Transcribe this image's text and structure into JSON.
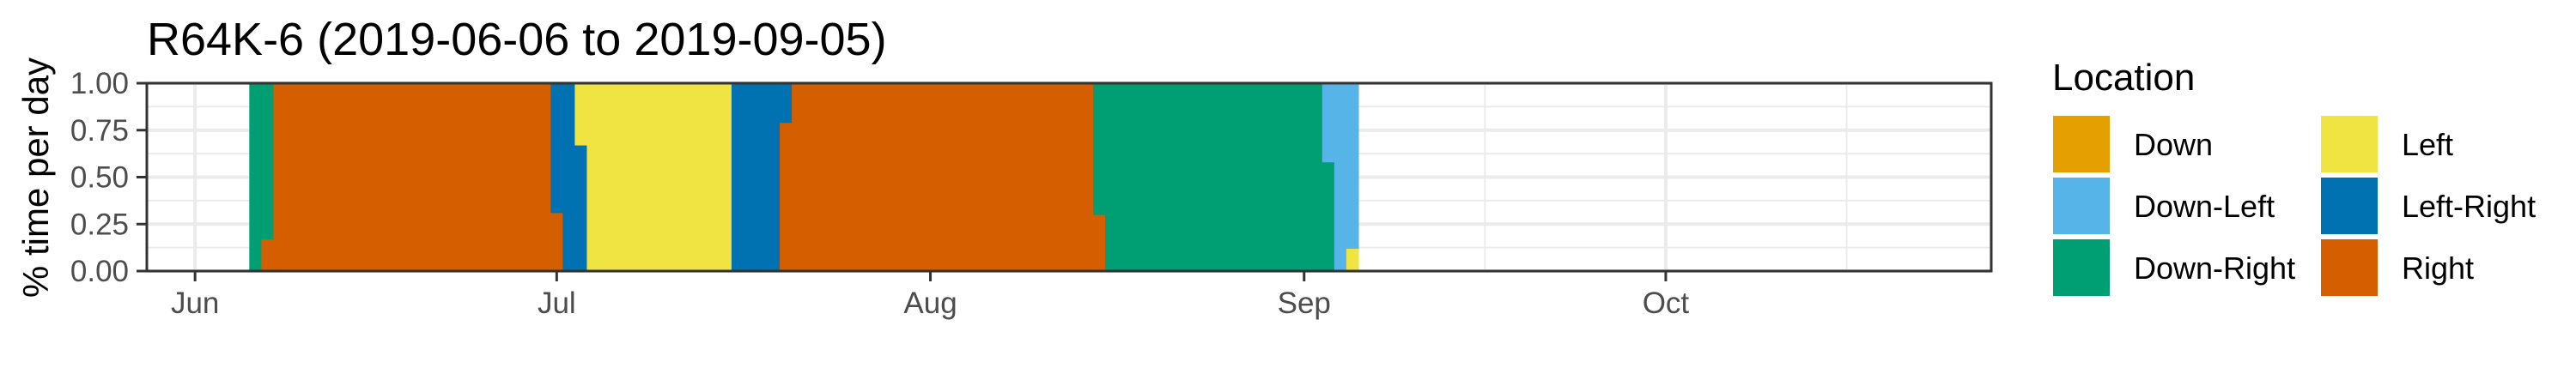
{
  "chart_data": {
    "type": "bar",
    "stacked": true,
    "title": "R64K-6 (2019-06-06 to 2019-09-05)",
    "xlabel": "",
    "ylabel": "% time per day",
    "xlim": [
      "2019-05-28",
      "2019-10-28"
    ],
    "ylim": [
      0,
      1
    ],
    "grid": true,
    "x_ticks": [
      {
        "date": "2019-06-01",
        "label": "Jun"
      },
      {
        "date": "2019-07-01",
        "label": "Jul"
      },
      {
        "date": "2019-08-01",
        "label": "Aug"
      },
      {
        "date": "2019-09-01",
        "label": "Sep"
      },
      {
        "date": "2019-10-01",
        "label": "Oct"
      }
    ],
    "x_minor_ticks": [
      "2019-06-16",
      "2019-07-16",
      "2019-08-16",
      "2019-09-16",
      "2019-10-16"
    ],
    "y_ticks": [
      {
        "value": 0,
        "label": "0.00"
      },
      {
        "value": 0.25,
        "label": "0.25"
      },
      {
        "value": 0.5,
        "label": "0.50"
      },
      {
        "value": 0.75,
        "label": "0.75"
      },
      {
        "value": 1,
        "label": "1.00"
      }
    ],
    "legend": {
      "title": "Location",
      "placement": "right",
      "entries": [
        {
          "name": "Down",
          "color": "#E69F00"
        },
        {
          "name": "Down-Left",
          "color": "#56B4E9"
        },
        {
          "name": "Down-Right",
          "color": "#009E73"
        },
        {
          "name": "Left",
          "color": "#F0E442"
        },
        {
          "name": "Left-Right",
          "color": "#0072B2"
        },
        {
          "name": "Right",
          "color": "#D55E00"
        }
      ]
    },
    "stack_order_bottom_to_top": [
      "Right",
      "Left-Right",
      "Left",
      "Down-Right",
      "Down-Left",
      "Down"
    ],
    "daily_proportions": [
      {
        "from": "2019-06-06",
        "to": "2019-06-06",
        "values": {
          "Down-Right": 1
        }
      },
      {
        "from": "2019-06-07",
        "to": "2019-06-07",
        "values": {
          "Right": 0.17,
          "Down-Right": 0.83
        }
      },
      {
        "from": "2019-06-08",
        "to": "2019-06-30",
        "values": {
          "Right": 1
        }
      },
      {
        "from": "2019-07-01",
        "to": "2019-07-01",
        "values": {
          "Right": 0.31,
          "Left-Right": 0.69
        }
      },
      {
        "from": "2019-07-02",
        "to": "2019-07-02",
        "values": {
          "Left-Right": 1
        }
      },
      {
        "from": "2019-07-03",
        "to": "2019-07-03",
        "values": {
          "Left-Right": 0.67,
          "Left": 0.33
        }
      },
      {
        "from": "2019-07-04",
        "to": "2019-07-15",
        "values": {
          "Left": 1
        }
      },
      {
        "from": "2019-07-16",
        "to": "2019-07-19",
        "values": {
          "Left-Right": 1
        }
      },
      {
        "from": "2019-07-20",
        "to": "2019-07-20",
        "values": {
          "Right": 0.79,
          "Left-Right": 0.21
        }
      },
      {
        "from": "2019-07-21",
        "to": "2019-08-14",
        "values": {
          "Right": 1
        }
      },
      {
        "from": "2019-08-15",
        "to": "2019-08-15",
        "values": {
          "Right": 0.3,
          "Down-Right": 0.7
        }
      },
      {
        "from": "2019-08-16",
        "to": "2019-09-02",
        "values": {
          "Down-Right": 1
        }
      },
      {
        "from": "2019-09-03",
        "to": "2019-09-03",
        "values": {
          "Down-Right": 0.58,
          "Down-Left": 0.42
        }
      },
      {
        "from": "2019-09-04",
        "to": "2019-09-04",
        "values": {
          "Down-Left": 1
        }
      },
      {
        "from": "2019-09-05",
        "to": "2019-09-05",
        "values": {
          "Left": 0.12,
          "Down-Left": 0.88
        }
      }
    ]
  }
}
